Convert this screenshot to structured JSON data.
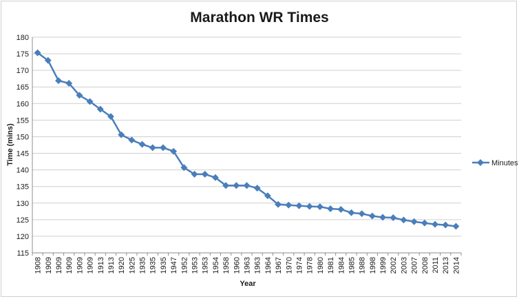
{
  "chart_data": {
    "type": "line",
    "title": "Marathon WR Times",
    "xlabel": "Year",
    "ylabel": "Time (mins)",
    "ylim": [
      115,
      180
    ],
    "ytick_step": 5,
    "grid": "horizontal",
    "legend_position": "right",
    "categories": [
      "1908",
      "1909",
      "1909",
      "1909",
      "1909",
      "1909",
      "1913",
      "1913",
      "1920",
      "1925",
      "1935",
      "1935",
      "1935",
      "1947",
      "1952",
      "1953",
      "1953",
      "1954",
      "1958",
      "1960",
      "1963",
      "1963",
      "1964",
      "1967",
      "1970",
      "1974",
      "1978",
      "1980",
      "1981",
      "1984",
      "1985",
      "1988",
      "1998",
      "1999",
      "2002",
      "2003",
      "2007",
      "2008",
      "2011",
      "2013",
      "2014"
    ],
    "series": [
      {
        "name": "Minutes",
        "color": "#4a7ebb",
        "values": [
          175.3,
          173.0,
          166.9,
          166.1,
          162.5,
          160.6,
          158.3,
          156.1,
          150.6,
          149.0,
          147.7,
          146.7,
          146.7,
          145.6,
          140.7,
          138.7,
          138.7,
          137.7,
          135.3,
          135.3,
          135.3,
          134.5,
          132.2,
          129.6,
          129.4,
          129.2,
          129.0,
          128.9,
          128.3,
          128.1,
          127.1,
          126.8,
          126.1,
          125.7,
          125.6,
          124.9,
          124.4,
          124.0,
          123.6,
          123.4,
          123.0
        ]
      }
    ]
  }
}
